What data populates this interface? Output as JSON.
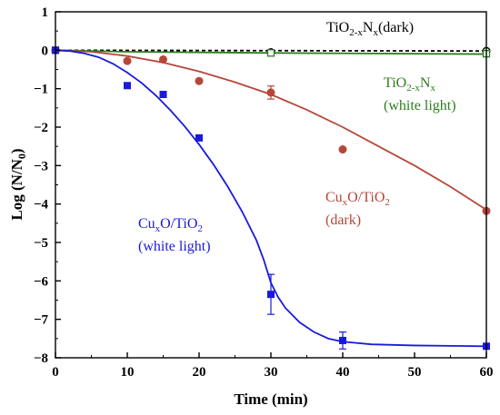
{
  "chart_data": {
    "type": "scatter",
    "xlabel": "Time (min)",
    "ylabel": "Log (N/N0)",
    "xlim": [
      0,
      60
    ],
    "ylim": [
      -8,
      1
    ],
    "xticks": [
      "0",
      "10",
      "20",
      "30",
      "40",
      "50",
      "60"
    ],
    "yticks": [
      "1",
      "0",
      "−1",
      "−2",
      "−3",
      "−4",
      "−5",
      "−6",
      "−7",
      "−8"
    ],
    "grid": false,
    "series": [
      {
        "name": "TiO2-xNx(dark)",
        "color": "#000000",
        "marker": "open-circle",
        "line": "dashed",
        "points": [
          {
            "x": 0,
            "y": 0
          },
          {
            "x": 30,
            "y": -0.05
          },
          {
            "x": 60,
            "y": -0.02
          }
        ],
        "fit": [
          {
            "x": 0,
            "y": 0
          },
          {
            "x": 60,
            "y": -0.02
          }
        ]
      },
      {
        "name": "TiO2-xNx (white light)",
        "color": "#2e7d1e",
        "marker": "open-square",
        "line": "solid",
        "points": [
          {
            "x": 0,
            "y": 0
          },
          {
            "x": 30,
            "y": -0.07
          },
          {
            "x": 60,
            "y": -0.09
          }
        ],
        "fit": [
          {
            "x": 0,
            "y": 0
          },
          {
            "x": 10,
            "y": -0.04
          },
          {
            "x": 30,
            "y": -0.07
          },
          {
            "x": 60,
            "y": -0.1
          }
        ]
      },
      {
        "name": "CuxO/TiO2 (dark)",
        "color": "#b5473a",
        "marker": "filled-circle",
        "line": "solid",
        "points": [
          {
            "x": 0,
            "y": 0
          },
          {
            "x": 10,
            "y": -0.28
          },
          {
            "x": 15,
            "y": -0.24
          },
          {
            "x": 20,
            "y": -0.8
          },
          {
            "x": 30,
            "y": -1.1,
            "err": 0.17
          },
          {
            "x": 40,
            "y": -2.58
          },
          {
            "x": 60,
            "y": -4.18
          }
        ],
        "fit": [
          {
            "x": 0,
            "y": 0
          },
          {
            "x": 5,
            "y": -0.04
          },
          {
            "x": 10,
            "y": -0.15
          },
          {
            "x": 15,
            "y": -0.32
          },
          {
            "x": 20,
            "y": -0.55
          },
          {
            "x": 25,
            "y": -0.83
          },
          {
            "x": 30,
            "y": -1.15
          },
          {
            "x": 35,
            "y": -1.55
          },
          {
            "x": 40,
            "y": -2.0
          },
          {
            "x": 45,
            "y": -2.5
          },
          {
            "x": 50,
            "y": -3.0
          },
          {
            "x": 55,
            "y": -3.55
          },
          {
            "x": 60,
            "y": -4.15
          }
        ]
      },
      {
        "name": "CuxO/TiO2 (white light)",
        "color": "#1a1adb",
        "marker": "filled-square",
        "line": "solid",
        "points": [
          {
            "x": 0,
            "y": 0
          },
          {
            "x": 10,
            "y": -0.92
          },
          {
            "x": 15,
            "y": -1.15
          },
          {
            "x": 20,
            "y": -2.28
          },
          {
            "x": 30,
            "y": -6.35,
            "err": 0.52
          },
          {
            "x": 40,
            "y": -7.55,
            "err": 0.22
          },
          {
            "x": 60,
            "y": -7.7
          }
        ],
        "fit": [
          {
            "x": 0,
            "y": 0
          },
          {
            "x": 2,
            "y": -0.02
          },
          {
            "x": 4,
            "y": -0.08
          },
          {
            "x": 6,
            "y": -0.18
          },
          {
            "x": 8,
            "y": -0.35
          },
          {
            "x": 10,
            "y": -0.58
          },
          {
            "x": 12,
            "y": -0.85
          },
          {
            "x": 14,
            "y": -1.18
          },
          {
            "x": 16,
            "y": -1.56
          },
          {
            "x": 18,
            "y": -1.98
          },
          {
            "x": 20,
            "y": -2.45
          },
          {
            "x": 22,
            "y": -2.97
          },
          {
            "x": 24,
            "y": -3.55
          },
          {
            "x": 26,
            "y": -4.2
          },
          {
            "x": 28,
            "y": -4.95
          },
          {
            "x": 29,
            "y": -5.45
          },
          {
            "x": 30,
            "y": -6.05
          },
          {
            "x": 31,
            "y": -6.42
          },
          {
            "x": 32,
            "y": -6.7
          },
          {
            "x": 34,
            "y": -7.08
          },
          {
            "x": 36,
            "y": -7.33
          },
          {
            "x": 38,
            "y": -7.5
          },
          {
            "x": 40,
            "y": -7.58
          },
          {
            "x": 44,
            "y": -7.65
          },
          {
            "x": 50,
            "y": -7.68
          },
          {
            "x": 60,
            "y": -7.7
          }
        ]
      }
    ]
  }
}
